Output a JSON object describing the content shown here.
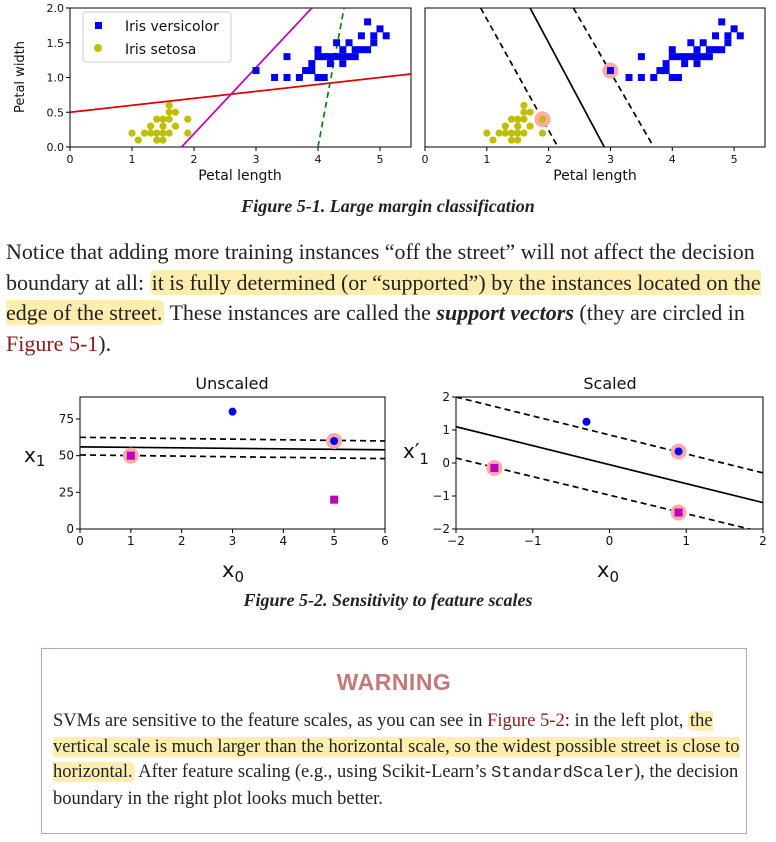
{
  "figure1": {
    "caption": "Figure 5-1. Large margin classification",
    "left_ylabel": "Petal width",
    "xlabel": "Petal length",
    "legend": [
      "Iris versicolor",
      "Iris setosa"
    ]
  },
  "paragraph": {
    "part1": "Notice that adding more training instances “off the street” will not affect the decision boundary at all: ",
    "highlight": "it is fully determined (or “supported”) by the instances located on the edge of the street.",
    "part2": " These instances are called the ",
    "term": "support vectors",
    "part3": " (they are circled in ",
    "link": "Figure 5-1",
    "part4": ")."
  },
  "figure2": {
    "caption": "Figure 5-2. Sensitivity to feature scales",
    "left_title": "Unscaled",
    "right_title": "Scaled",
    "left_ylabel": "x",
    "left_ylabel_sub": "1",
    "right_ylabel": "x′",
    "right_ylabel_sub": "1",
    "xlabel": "x",
    "xlabel_sub": "0"
  },
  "warning": {
    "title": "WARNING",
    "text1": "SVMs are sensitive to the feature scales, as you can see in ",
    "link": "Figure 5-2",
    "text2": ": in the left plot, ",
    "highlight": "the vertical scale is much larger than the horizontal scale, so the widest possible street is close to horizontal.",
    "text3": " After feature scaling (e.g., using Scikit-Learn’s ",
    "code": "StandardScaler",
    "text4": "), the decision boundary in the right plot looks much better."
  },
  "colors": {
    "versicolor": "#0000ee",
    "setosa": "#bfbf00",
    "support_circle": "#ffaaaa",
    "decision_red": "#dd0000",
    "decision_magenta": "#bb00bb",
    "decision_green": "#008800",
    "highlight": "#fdeeb0",
    "link": "#8b1a1a",
    "warning_title": "#c47a7a"
  },
  "chart_data": [
    {
      "type": "scatter",
      "title": "",
      "xlabel": "Petal length",
      "ylabel": "Petal width",
      "xlim": [
        0,
        5.5
      ],
      "ylim": [
        0,
        2
      ],
      "xticks": [
        0,
        1,
        2,
        3,
        4,
        5
      ],
      "yticks": [
        0.0,
        0.5,
        1.0,
        1.5,
        2.0
      ],
      "legend_position": "top-left",
      "series": [
        {
          "name": "Iris versicolor",
          "marker": "square",
          "points": [
            [
              3.0,
              1.1
            ],
            [
              3.3,
              1.0
            ],
            [
              3.5,
              1.0
            ],
            [
              3.7,
              1.0
            ],
            [
              3.9,
              1.1
            ],
            [
              3.5,
              1.3
            ],
            [
              3.9,
              1.2
            ],
            [
              4.0,
              1.0
            ],
            [
              4.0,
              1.3
            ],
            [
              4.1,
              1.0
            ],
            [
              4.1,
              1.3
            ],
            [
              4.2,
              1.3
            ],
            [
              4.2,
              1.2
            ],
            [
              4.3,
              1.3
            ],
            [
              4.4,
              1.3
            ],
            [
              4.4,
              1.4
            ],
            [
              4.5,
              1.3
            ],
            [
              4.5,
              1.5
            ],
            [
              4.6,
              1.3
            ],
            [
              4.6,
              1.4
            ],
            [
              4.7,
              1.4
            ],
            [
              4.7,
              1.6
            ],
            [
              4.8,
              1.4
            ],
            [
              4.8,
              1.8
            ],
            [
              4.9,
              1.5
            ],
            [
              5.0,
              1.7
            ],
            [
              4.0,
              1.4
            ],
            [
              3.8,
              1.1
            ],
            [
              4.3,
              1.5
            ],
            [
              4.9,
              1.6
            ],
            [
              5.1,
              1.6
            ],
            [
              4.4,
              1.2
            ]
          ]
        },
        {
          "name": "Iris setosa",
          "marker": "circle",
          "points": [
            [
              1.0,
              0.2
            ],
            [
              1.1,
              0.1
            ],
            [
              1.2,
              0.2
            ],
            [
              1.3,
              0.2
            ],
            [
              1.3,
              0.3
            ],
            [
              1.4,
              0.2
            ],
            [
              1.4,
              0.1
            ],
            [
              1.5,
              0.2
            ],
            [
              1.5,
              0.4
            ],
            [
              1.5,
              0.3
            ],
            [
              1.6,
              0.2
            ],
            [
              1.6,
              0.4
            ],
            [
              1.6,
              0.6
            ],
            [
              1.7,
              0.3
            ],
            [
              1.7,
              0.5
            ],
            [
              1.9,
              0.2
            ],
            [
              1.9,
              0.4
            ],
            [
              1.4,
              0.4
            ],
            [
              1.6,
              0.5
            ],
            [
              1.5,
              0.1
            ]
          ]
        }
      ],
      "lines": [
        {
          "name": "red boundary",
          "x": [
            0,
            5.5
          ],
          "y": [
            0.5,
            1.05
          ]
        },
        {
          "name": "magenta boundary",
          "x": [
            1.8,
            3.9
          ],
          "y": [
            0,
            2.0
          ]
        },
        {
          "name": "green dashed boundary",
          "x": [
            4.0,
            4.42
          ],
          "y": [
            0,
            2.0
          ],
          "style": "dashed"
        }
      ]
    },
    {
      "type": "scatter",
      "title": "",
      "xlabel": "Petal length",
      "ylabel": "",
      "xlim": [
        0,
        5.5
      ],
      "ylim": [
        0,
        2
      ],
      "xticks": [
        0,
        1,
        2,
        3,
        4,
        5
      ],
      "support_vectors": [
        [
          1.9,
          0.4
        ],
        [
          3.0,
          1.1
        ]
      ],
      "series": [
        {
          "name": "Iris versicolor",
          "marker": "square",
          "points": [
            [
              3.0,
              1.1
            ],
            [
              3.3,
              1.0
            ],
            [
              3.5,
              1.0
            ],
            [
              3.7,
              1.0
            ],
            [
              3.9,
              1.1
            ],
            [
              3.5,
              1.3
            ],
            [
              3.9,
              1.2
            ],
            [
              4.0,
              1.0
            ],
            [
              4.0,
              1.3
            ],
            [
              4.1,
              1.0
            ],
            [
              4.1,
              1.3
            ],
            [
              4.2,
              1.3
            ],
            [
              4.2,
              1.2
            ],
            [
              4.3,
              1.3
            ],
            [
              4.4,
              1.3
            ],
            [
              4.4,
              1.4
            ],
            [
              4.5,
              1.3
            ],
            [
              4.5,
              1.5
            ],
            [
              4.6,
              1.3
            ],
            [
              4.6,
              1.4
            ],
            [
              4.7,
              1.4
            ],
            [
              4.7,
              1.6
            ],
            [
              4.8,
              1.4
            ],
            [
              4.8,
              1.8
            ],
            [
              4.9,
              1.5
            ],
            [
              5.0,
              1.7
            ],
            [
              4.0,
              1.4
            ],
            [
              3.8,
              1.1
            ],
            [
              4.3,
              1.5
            ],
            [
              4.9,
              1.6
            ],
            [
              5.1,
              1.6
            ],
            [
              4.4,
              1.2
            ]
          ]
        },
        {
          "name": "Iris setosa",
          "marker": "circle",
          "points": [
            [
              1.0,
              0.2
            ],
            [
              1.1,
              0.1
            ],
            [
              1.2,
              0.2
            ],
            [
              1.3,
              0.2
            ],
            [
              1.3,
              0.3
            ],
            [
              1.4,
              0.2
            ],
            [
              1.4,
              0.1
            ],
            [
              1.5,
              0.2
            ],
            [
              1.5,
              0.4
            ],
            [
              1.5,
              0.3
            ],
            [
              1.6,
              0.2
            ],
            [
              1.6,
              0.4
            ],
            [
              1.6,
              0.6
            ],
            [
              1.7,
              0.3
            ],
            [
              1.7,
              0.5
            ],
            [
              1.9,
              0.2
            ],
            [
              1.9,
              0.4
            ],
            [
              1.4,
              0.4
            ],
            [
              1.6,
              0.5
            ],
            [
              1.5,
              0.1
            ]
          ]
        }
      ],
      "lines": [
        {
          "name": "decision boundary",
          "x": [
            1.7,
            2.9
          ],
          "y": [
            2.0,
            0
          ],
          "style": "solid"
        },
        {
          "name": "margin lower",
          "x": [
            0.9,
            2.15
          ],
          "y": [
            2.0,
            0
          ],
          "style": "dashed"
        },
        {
          "name": "margin upper",
          "x": [
            2.4,
            3.7
          ],
          "y": [
            2.0,
            0
          ],
          "style": "dashed"
        }
      ]
    },
    {
      "type": "scatter",
      "title": "Unscaled",
      "xlabel": "x0",
      "ylabel": "x1",
      "xlim": [
        0,
        6
      ],
      "ylim": [
        0,
        90
      ],
      "xticks": [
        0,
        1,
        2,
        3,
        4,
        5,
        6
      ],
      "yticks": [
        0,
        25,
        50,
        75
      ],
      "points_blue": [
        [
          3,
          80
        ],
        [
          5,
          60
        ]
      ],
      "points_magenta": [
        [
          1,
          50
        ],
        [
          5,
          20
        ]
      ],
      "support_vectors": [
        [
          1,
          50
        ],
        [
          5,
          60
        ]
      ],
      "lines": [
        {
          "name": "decision boundary",
          "x": [
            0,
            6
          ],
          "y": [
            56,
            54
          ],
          "style": "solid"
        },
        {
          "name": "margin upper",
          "x": [
            0,
            6
          ],
          "y": [
            62.5,
            60
          ],
          "style": "dashed"
        },
        {
          "name": "margin lower",
          "x": [
            0,
            6
          ],
          "y": [
            50.5,
            48
          ],
          "style": "dashed"
        }
      ]
    },
    {
      "type": "scatter",
      "title": "Scaled",
      "xlabel": "x0",
      "ylabel": "x′1",
      "xlim": [
        -2,
        2
      ],
      "ylim": [
        -2,
        2
      ],
      "xticks": [
        -2,
        -1,
        0,
        1,
        2
      ],
      "yticks": [
        -2,
        -1,
        0,
        1,
        2
      ],
      "points_blue": [
        [
          -0.3,
          1.25
        ],
        [
          0.9,
          0.35
        ]
      ],
      "points_magenta": [
        [
          -1.5,
          -0.15
        ],
        [
          0.9,
          -1.5
        ]
      ],
      "support_vectors": [
        [
          -1.5,
          -0.15
        ],
        [
          0.9,
          0.35
        ],
        [
          0.9,
          -1.5
        ]
      ],
      "lines": [
        {
          "name": "decision boundary",
          "x": [
            -2,
            2
          ],
          "y": [
            1.1,
            -1.2
          ],
          "style": "solid"
        },
        {
          "name": "margin upper",
          "x": [
            -2,
            2
          ],
          "y": [
            2.0,
            -0.3
          ],
          "style": "dashed"
        },
        {
          "name": "margin lower",
          "x": [
            -2,
            2
          ],
          "y": [
            0.15,
            -2.1
          ],
          "style": "dashed"
        }
      ]
    }
  ]
}
